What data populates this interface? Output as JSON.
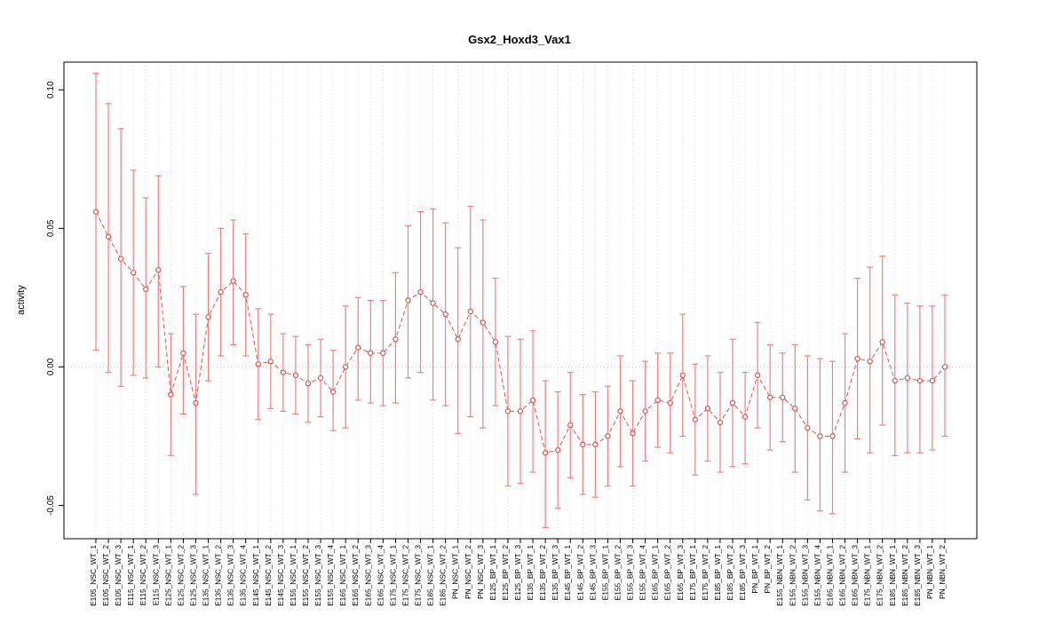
{
  "title": "Gsx2_Hoxd3_Vax1",
  "chart_data": {
    "type": "scatter",
    "title": "Gsx2_Hoxd3_Vax1",
    "xlabel": "",
    "ylabel": "activity",
    "ylim": [
      -0.062,
      0.11
    ],
    "yticks": [
      -0.05,
      0.0,
      0.05,
      0.1
    ],
    "grid": "vertical-dotted",
    "zero_line": true,
    "legend": "none",
    "point_color": "#e4504e",
    "errorbar_color": "#f28080",
    "grid_color": "#dcdcdc",
    "categories": [
      "E105_NSC_WT_1",
      "E105_NSC_WT_2",
      "E105_NSC_WT_3",
      "E115_NSC_WT_1",
      "E115_NSC_WT_2",
      "E115_NSC_WT_3",
      "E125_NSC_WT_1",
      "E125_NSC_WT_2",
      "E125_NSC_WT_3",
      "E135_NSC_WT_1",
      "E135_NSC_WT_2",
      "E135_NSC_WT_3",
      "E135_NSC_WT_4",
      "E145_NSC_WT_1",
      "E145_NSC_WT_2",
      "E145_NSC_WT_3",
      "E155_NSC_WT_1",
      "E155_NSC_WT_2",
      "E155_NSC_WT_3",
      "E155_NSC_WT_4",
      "E165_NSC_WT_1",
      "E165_NSC_WT_2",
      "E165_NSC_WT_3",
      "E165_NSC_WT_4",
      "E175_NSC_WT_1",
      "E175_NSC_WT_2",
      "E175_NSC_WT_3",
      "E185_NSC_WT_1",
      "E185_NSC_WT_2",
      "PN_NSC_WT_1",
      "PN_NSC_WT_2",
      "PN_NSC_WT_3",
      "E125_BP_WT_1",
      "E125_BP_WT_2",
      "E125_BP_WT_3",
      "E135_BP_WT_1",
      "E135_BP_WT_2",
      "E135_BP_WT_3",
      "E145_BP_WT_1",
      "E145_BP_WT_2",
      "E145_BP_WT_3",
      "E155_BP_WT_1",
      "E155_BP_WT_2",
      "E155_BP_WT_3",
      "E155_BP_WT_4",
      "E165_BP_WT_1",
      "E165_BP_WT_2",
      "E165_BP_WT_3",
      "E175_BP_WT_1",
      "E175_BP_WT_2",
      "E185_BP_WT_1",
      "E185_BP_WT_2",
      "E185_BP_WT_3",
      "PN_BP_WT_1",
      "PN_BP_WT_2",
      "E155_NBN_WT_1",
      "E155_NBN_WT_2",
      "E155_NBN_WT_3",
      "E155_NBN_WT_4",
      "E165_NBN_WT_1",
      "E165_NBN_WT_2",
      "E165_NBN_WT_3",
      "E175_NBN_WT_1",
      "E175_NBN_WT_2",
      "E185_NBN_WT_1",
      "E185_NBN_WT_2",
      "E185_NBN_WT_3",
      "PN_NBN_WT_1",
      "PN_NBN_WT_2"
    ],
    "series": [
      {
        "name": "activity",
        "means": [
          0.056,
          0.047,
          0.039,
          0.034,
          0.028,
          0.035,
          -0.01,
          0.005,
          -0.013,
          0.018,
          0.027,
          0.031,
          0.026,
          0.001,
          0.002,
          -0.002,
          -0.003,
          -0.006,
          -0.004,
          -0.009,
          0.0,
          0.007,
          0.005,
          0.005,
          0.01,
          0.024,
          0.027,
          0.023,
          0.019,
          0.01,
          0.02,
          0.016,
          0.009,
          -0.016,
          -0.016,
          -0.012,
          -0.031,
          -0.03,
          -0.021,
          -0.028,
          -0.028,
          -0.025,
          -0.016,
          -0.024,
          -0.016,
          -0.012,
          -0.013,
          -0.003,
          -0.019,
          -0.015,
          -0.02,
          -0.013,
          -0.018,
          -0.003,
          -0.011,
          -0.011,
          -0.015,
          -0.022,
          -0.025,
          -0.025,
          -0.013,
          0.003,
          0.002,
          0.009,
          -0.005,
          -0.004,
          -0.005,
          -0.005,
          0.0
        ],
        "upper": [
          0.106,
          0.095,
          0.086,
          0.071,
          0.061,
          0.069,
          0.012,
          0.029,
          0.019,
          0.041,
          0.05,
          0.053,
          0.048,
          0.021,
          0.019,
          0.012,
          0.011,
          0.008,
          0.01,
          0.006,
          0.022,
          0.025,
          0.024,
          0.024,
          0.034,
          0.051,
          0.056,
          0.057,
          0.052,
          0.043,
          0.058,
          0.053,
          0.032,
          0.011,
          0.01,
          0.013,
          -0.005,
          -0.009,
          -0.002,
          -0.01,
          -0.009,
          -0.007,
          0.004,
          -0.005,
          0.002,
          0.005,
          0.005,
          0.019,
          0.001,
          0.004,
          -0.002,
          0.01,
          -0.002,
          0.016,
          0.008,
          0.005,
          0.008,
          0.004,
          0.003,
          0.002,
          0.012,
          0.032,
          0.036,
          0.04,
          0.026,
          0.023,
          0.022,
          0.022,
          0.026
        ],
        "lower": [
          0.006,
          -0.002,
          -0.007,
          -0.003,
          -0.004,
          0.0,
          -0.032,
          -0.017,
          -0.046,
          -0.005,
          0.004,
          0.008,
          0.004,
          -0.019,
          -0.015,
          -0.016,
          -0.017,
          -0.02,
          -0.018,
          -0.023,
          -0.022,
          -0.012,
          -0.013,
          -0.014,
          -0.013,
          -0.004,
          -0.002,
          -0.012,
          -0.014,
          -0.024,
          -0.018,
          -0.022,
          -0.014,
          -0.043,
          -0.042,
          -0.038,
          -0.058,
          -0.051,
          -0.04,
          -0.046,
          -0.047,
          -0.043,
          -0.036,
          -0.043,
          -0.034,
          -0.029,
          -0.031,
          -0.025,
          -0.039,
          -0.034,
          -0.038,
          -0.036,
          -0.035,
          -0.022,
          -0.03,
          -0.027,
          -0.038,
          -0.048,
          -0.052,
          -0.053,
          -0.038,
          -0.026,
          -0.031,
          -0.021,
          -0.032,
          -0.031,
          -0.031,
          -0.03,
          -0.025
        ]
      }
    ]
  }
}
